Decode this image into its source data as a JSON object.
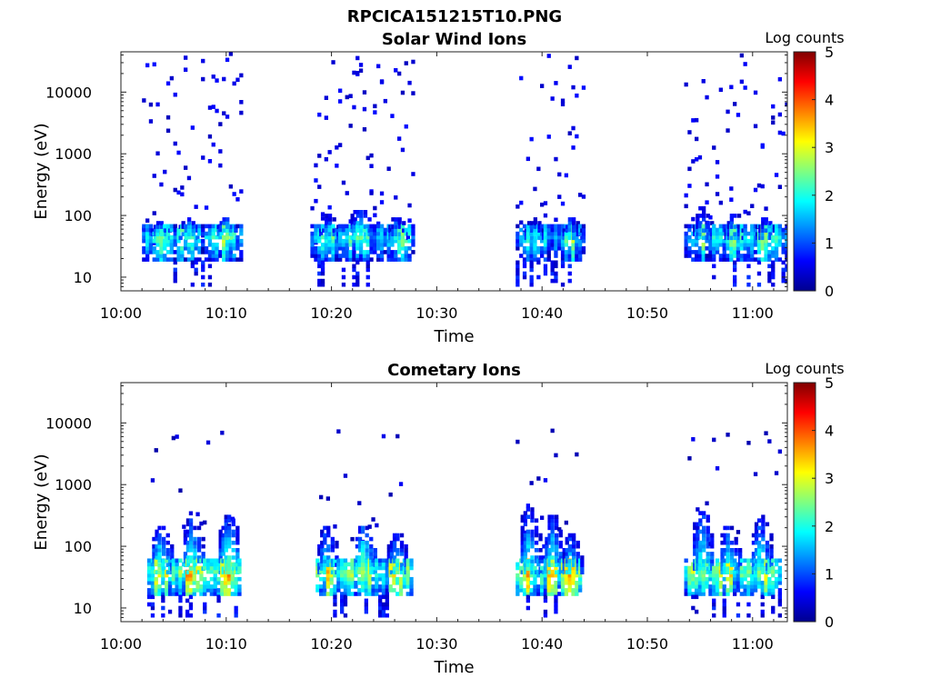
{
  "figure_title": "RPCICA151215T10.PNG",
  "chart_data": [
    {
      "type": "heatmap",
      "title": "Solar Wind Ions",
      "xlabel": "Time",
      "ylabel": "Energy (eV)",
      "x_ticks": [
        "10:00",
        "10:10",
        "10:20",
        "10:30",
        "10:40",
        "10:50",
        "11:00"
      ],
      "x_range_min": [
        0,
        63.3
      ],
      "y_ticks": [
        10,
        100,
        1000,
        10000
      ],
      "y_range_ev": [
        6,
        45000
      ],
      "y_scale": "log",
      "colorbar_label": "Log counts",
      "colorbar_ticks": [
        0,
        1,
        2,
        3,
        4,
        5
      ],
      "colormap": "jet",
      "active_intervals_min": [
        [
          2.0,
          11.5
        ],
        [
          18.0,
          27.8
        ],
        [
          37.5,
          43.8
        ],
        [
          53.5,
          63.3
        ]
      ],
      "core_energy_ev": 40,
      "core_peak_log_counts": 3.1,
      "bursts": [
        {
          "t": 3.5,
          "peak_ev": 70,
          "log_counts": 2.5
        },
        {
          "t": 6.2,
          "peak_ev": 90,
          "log_counts": 2.2
        },
        {
          "t": 9.8,
          "peak_ev": 80,
          "log_counts": 2.9
        },
        {
          "t": 19.5,
          "peak_ev": 100,
          "log_counts": 1.8
        },
        {
          "t": 22.5,
          "peak_ev": 120,
          "log_counts": 2.6
        },
        {
          "t": 26.0,
          "peak_ev": 90,
          "log_counts": 1.9
        },
        {
          "t": 39.0,
          "peak_ev": 80,
          "log_counts": 1.8
        },
        {
          "t": 42.5,
          "peak_ev": 90,
          "log_counts": 1.9
        },
        {
          "t": 55.0,
          "peak_ev": 130,
          "log_counts": 1.8
        },
        {
          "t": 58.0,
          "peak_ev": 110,
          "log_counts": 1.7
        },
        {
          "t": 61.0,
          "peak_ev": 90,
          "log_counts": 1.8
        }
      ],
      "scatter_ev": [
        30,
        40000
      ],
      "scatter_log_counts": 0.3
    },
    {
      "type": "heatmap",
      "title": "Cometary Ions",
      "xlabel": "Time",
      "ylabel": "Energy (eV)",
      "x_ticks": [
        "10:00",
        "10:10",
        "10:20",
        "10:30",
        "10:40",
        "10:50",
        "11:00"
      ],
      "x_range_min": [
        0,
        63.3
      ],
      "y_ticks": [
        10,
        100,
        1000,
        10000
      ],
      "y_range_ev": [
        6,
        45000
      ],
      "y_scale": "log",
      "colorbar_label": "Log counts",
      "colorbar_ticks": [
        0,
        1,
        2,
        3,
        4,
        5
      ],
      "colormap": "jet",
      "active_intervals_min": [
        [
          2.5,
          11.3
        ],
        [
          18.5,
          27.5
        ],
        [
          37.5,
          43.5
        ],
        [
          53.5,
          62.5
        ]
      ],
      "core_energy_ev": 35,
      "core_peak_log_counts": 4.0,
      "bursts": [
        {
          "t": 3.5,
          "peak_ev": 200,
          "log_counts": 2.5
        },
        {
          "t": 6.5,
          "peak_ev": 250,
          "log_counts": 2.6
        },
        {
          "t": 10.0,
          "peak_ev": 300,
          "log_counts": 2.7
        },
        {
          "t": 19.3,
          "peak_ev": 200,
          "log_counts": 2.2
        },
        {
          "t": 22.8,
          "peak_ev": 200,
          "log_counts": 2.8
        },
        {
          "t": 26.0,
          "peak_ev": 150,
          "log_counts": 2.3
        },
        {
          "t": 38.5,
          "peak_ev": 500,
          "log_counts": 2.2
        },
        {
          "t": 40.8,
          "peak_ev": 300,
          "log_counts": 2.4
        },
        {
          "t": 42.5,
          "peak_ev": 150,
          "log_counts": 2.2
        },
        {
          "t": 55.0,
          "peak_ev": 500,
          "log_counts": 2.3
        },
        {
          "t": 57.5,
          "peak_ev": 200,
          "log_counts": 2.4
        },
        {
          "t": 60.5,
          "peak_ev": 300,
          "log_counts": 2.3
        }
      ],
      "scatter_ev": [
        100,
        9000
      ],
      "scatter_log_counts": 0.2
    }
  ]
}
